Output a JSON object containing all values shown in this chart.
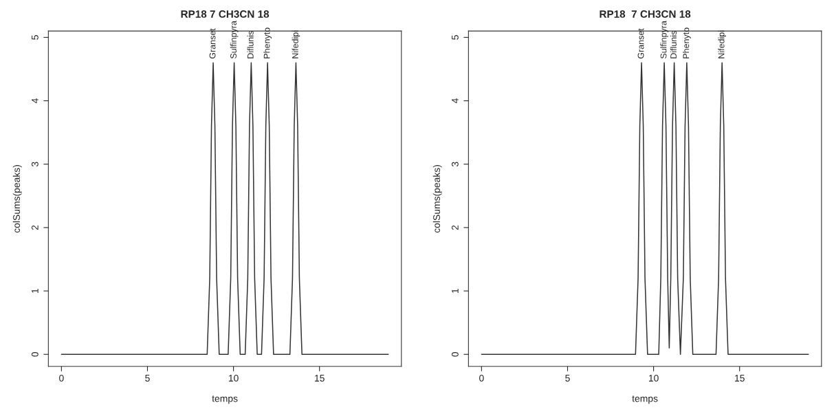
{
  "chart_data": [
    {
      "type": "line",
      "title": "RP18 7 CH3CN 18",
      "xlabel": "temps",
      "ylabel": "colSums(peaks)",
      "x": [
        0,
        8.47,
        8.62,
        8.72,
        8.82,
        8.92,
        9.02,
        9.17,
        9.69,
        9.84,
        9.94,
        10.04,
        10.14,
        10.24,
        10.39,
        10.68,
        10.83,
        10.93,
        11.03,
        11.13,
        11.23,
        11.38,
        11.63,
        11.78,
        11.88,
        11.98,
        12.08,
        12.18,
        12.33,
        13.28,
        13.43,
        13.53,
        13.63,
        13.73,
        13.83,
        13.98,
        19
      ],
      "series": [
        {
          "color": "#333333",
          "values": [
            0,
            0,
            1.2,
            3.6,
            4.6,
            3.6,
            1.2,
            0,
            0,
            1.2,
            3.6,
            4.6,
            3.6,
            1.2,
            0,
            0,
            1.2,
            3.6,
            4.6,
            3.6,
            1.2,
            0,
            0,
            1.2,
            3.6,
            4.6,
            3.6,
            1.2,
            0,
            0,
            1.2,
            3.6,
            4.6,
            3.6,
            1.2,
            0,
            0
          ]
        }
      ],
      "annotations": [
        {
          "text": "Granset",
          "x": 8.82,
          "y": 4.6
        },
        {
          "text": "Sulfinpyra",
          "x": 10.04,
          "y": 4.6
        },
        {
          "text": "Diflunis",
          "x": 11.03,
          "y": 4.6
        },
        {
          "text": "Phenyto",
          "x": 11.98,
          "y": 4.6
        },
        {
          "text": "Nifedipi",
          "x": 13.63,
          "y": 4.6
        }
      ],
      "xlim": [
        -0.76,
        19.76
      ],
      "ylim": [
        -0.19,
        5.1
      ],
      "xticks": [
        0,
        5,
        10,
        15
      ],
      "yticks": [
        0,
        1,
        2,
        3,
        4,
        5
      ],
      "grid": false,
      "legend": false
    },
    {
      "type": "line",
      "title": "RP18  7 CH3CN 18",
      "xlabel": "temps",
      "ylabel": "colSums(peaks)",
      "x": [
        0,
        8.95,
        9.1,
        9.2,
        9.3,
        9.4,
        9.5,
        9.65,
        10.3,
        10.42,
        10.52,
        10.62,
        10.72,
        10.82,
        10.91,
        11.0,
        11.1,
        11.2,
        11.3,
        11.4,
        11.56,
        11.73,
        11.83,
        11.93,
        12.03,
        12.13,
        12.28,
        13.63,
        13.78,
        13.88,
        13.98,
        14.08,
        14.18,
        14.33,
        19
      ],
      "series": [
        {
          "color": "#333333",
          "values": [
            0,
            0,
            1.2,
            3.6,
            4.6,
            3.6,
            1.2,
            0,
            0,
            1.2,
            3.6,
            4.6,
            3.6,
            1.2,
            0.1,
            1.2,
            3.6,
            4.6,
            3.6,
            1.2,
            0,
            1.2,
            3.6,
            4.6,
            3.6,
            1.2,
            0,
            0,
            1.2,
            3.6,
            4.6,
            3.6,
            1.2,
            0,
            0
          ]
        }
      ],
      "annotations": [
        {
          "text": "Granset",
          "x": 9.3,
          "y": 4.6
        },
        {
          "text": "Sulfinpyra",
          "x": 10.62,
          "y": 4.6
        },
        {
          "text": "Diflunis",
          "x": 11.2,
          "y": 4.6
        },
        {
          "text": "Phenyto",
          "x": 11.93,
          "y": 4.6
        },
        {
          "text": "Nifedipi",
          "x": 13.98,
          "y": 4.6
        }
      ],
      "xlim": [
        -0.76,
        19.76
      ],
      "ylim": [
        -0.19,
        5.1
      ],
      "xticks": [
        0,
        5,
        10,
        15
      ],
      "yticks": [
        0,
        1,
        2,
        3,
        4,
        5
      ],
      "grid": false,
      "legend": false
    }
  ]
}
